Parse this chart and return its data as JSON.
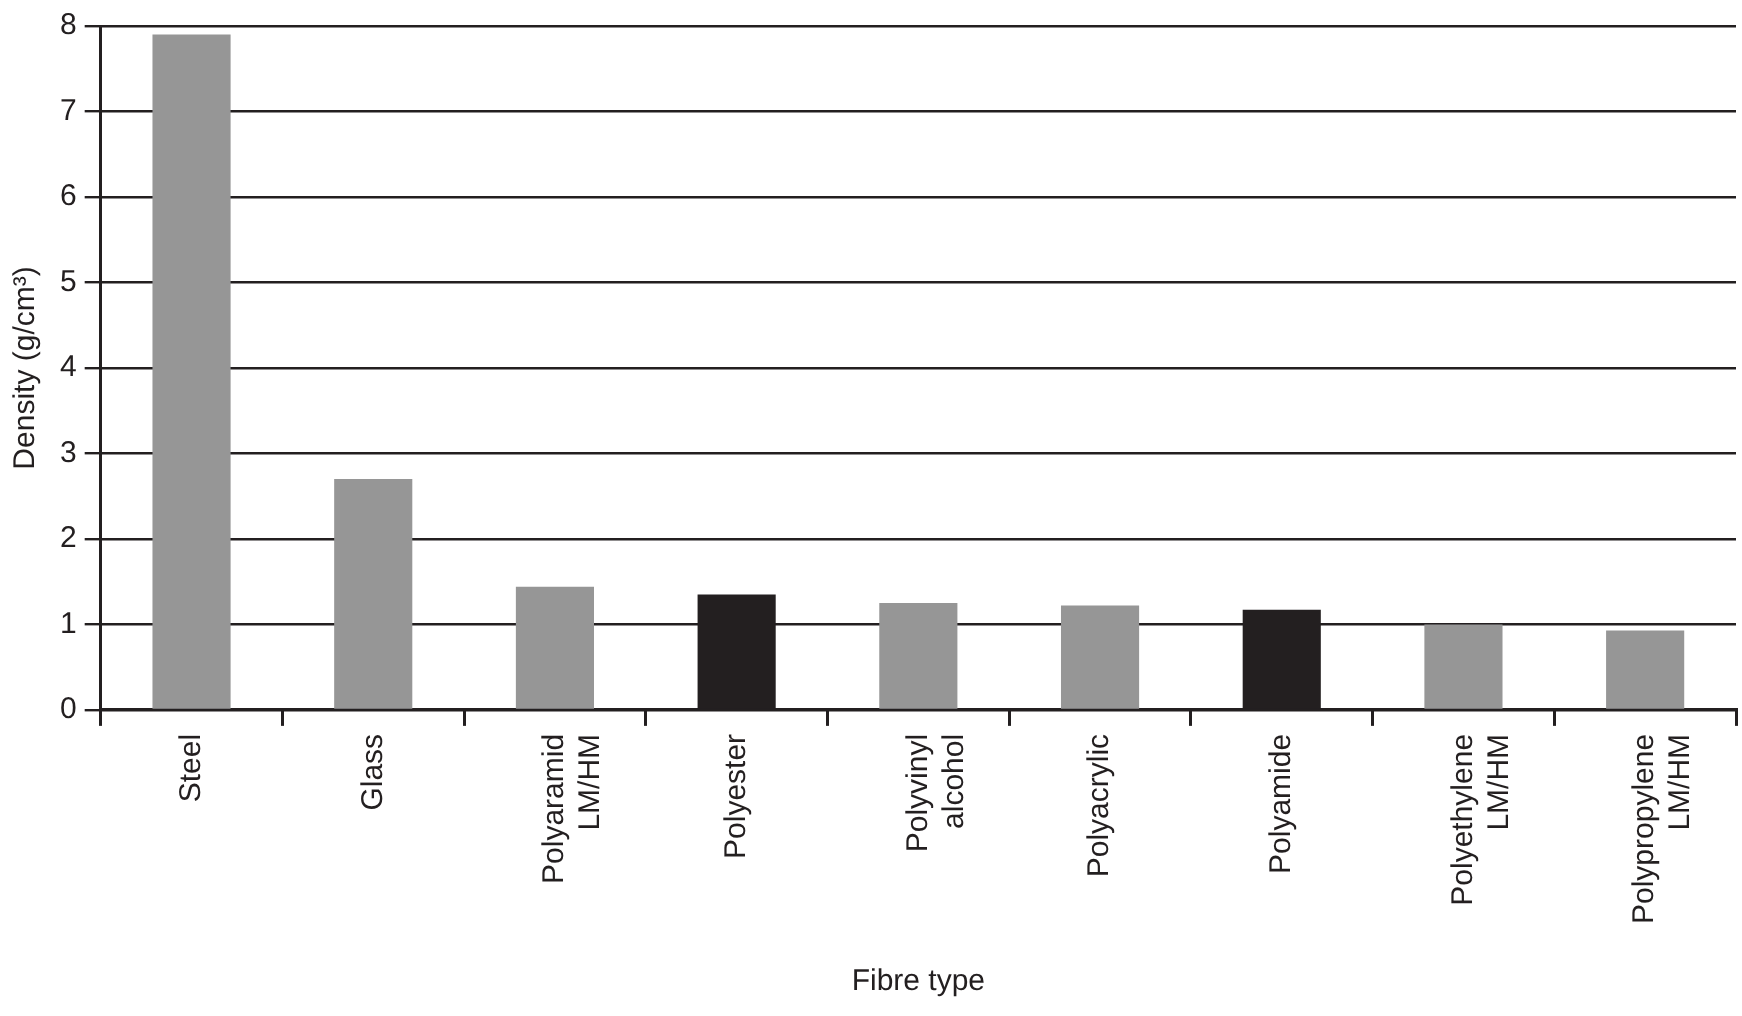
{
  "chart_data": {
    "type": "bar",
    "xlabel": "Fibre type",
    "ylabel": "Density (g/cm³)",
    "categories": [
      "Steel",
      "Glass",
      "Polyaramid LM/HM",
      "Polyester",
      "Polyvinyl alcohol",
      "Polyacrylic",
      "Polyamide",
      "Polyethylene LM/HM",
      "Polypropylene LM/HM"
    ],
    "values": [
      7.9,
      2.7,
      1.44,
      1.35,
      1.25,
      1.22,
      1.17,
      1.0,
      0.93
    ],
    "colors": [
      "#969696",
      "#969696",
      "#969696",
      "#231f20",
      "#969696",
      "#969696",
      "#231f20",
      "#969696",
      "#969696"
    ],
    "ylim": [
      0,
      8
    ],
    "yticks": [
      0,
      1,
      2,
      3,
      4,
      5,
      6,
      7,
      8
    ],
    "grid": "y",
    "legend": false
  }
}
